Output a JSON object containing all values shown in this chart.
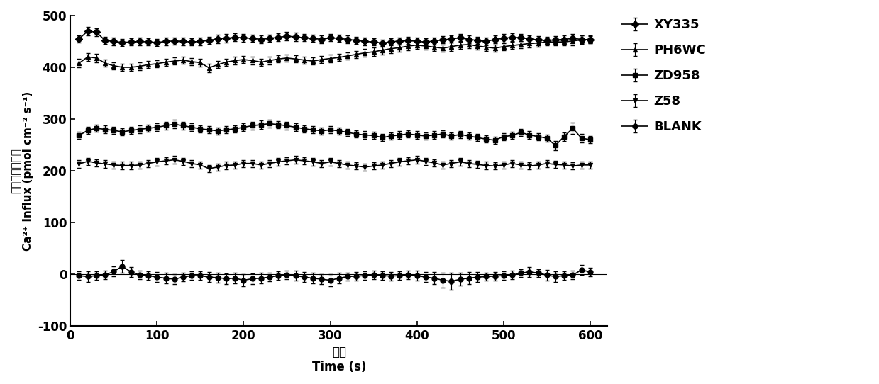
{
  "xlabel_cn": "时间",
  "xlabel_en": "Time (s)",
  "ylabel_cn": "钓离子内流速率",
  "ylabel_en": "Ca²⁺ Influx (pmol cm⁻² s⁻¹)",
  "xlim": [
    0,
    620
  ],
  "ylim": [
    -100,
    500
  ],
  "yticks": [
    -100,
    0,
    100,
    200,
    300,
    400,
    500
  ],
  "xticks": [
    0,
    100,
    200,
    300,
    400,
    500,
    600
  ],
  "background_color": "#ffffff",
  "series": [
    {
      "label": "XY335",
      "marker": "D",
      "color": "#000000",
      "x": [
        10,
        20,
        30,
        40,
        50,
        60,
        70,
        80,
        90,
        100,
        110,
        120,
        130,
        140,
        150,
        160,
        170,
        180,
        190,
        200,
        210,
        220,
        230,
        240,
        250,
        260,
        270,
        280,
        290,
        300,
        310,
        320,
        330,
        340,
        350,
        360,
        370,
        380,
        390,
        400,
        410,
        420,
        430,
        440,
        450,
        460,
        470,
        480,
        490,
        500,
        510,
        520,
        530,
        540,
        550,
        560,
        570,
        580,
        590,
        600
      ],
      "y": [
        455,
        470,
        468,
        452,
        450,
        448,
        449,
        450,
        449,
        448,
        450,
        451,
        450,
        449,
        450,
        452,
        455,
        456,
        458,
        457,
        456,
        454,
        456,
        458,
        460,
        459,
        457,
        456,
        454,
        457,
        456,
        454,
        452,
        450,
        449,
        447,
        449,
        451,
        452,
        450,
        449,
        451,
        453,
        455,
        457,
        454,
        452,
        450,
        454,
        456,
        458,
        457,
        455,
        453,
        452,
        453,
        454,
        456,
        454,
        453
      ],
      "yerr": [
        7,
        8,
        8,
        7,
        7,
        7,
        7,
        7,
        7,
        7,
        7,
        7,
        7,
        7,
        7,
        7,
        8,
        8,
        8,
        8,
        7,
        7,
        7,
        8,
        8,
        8,
        7,
        7,
        7,
        7,
        7,
        7,
        7,
        7,
        7,
        7,
        7,
        7,
        7,
        7,
        7,
        7,
        7,
        7,
        8,
        7,
        7,
        7,
        7,
        8,
        8,
        7,
        7,
        7,
        7,
        7,
        7,
        8,
        7,
        7
      ]
    },
    {
      "label": "PH6WC",
      "marker": "^",
      "color": "#000000",
      "x": [
        10,
        20,
        30,
        40,
        50,
        60,
        70,
        80,
        90,
        100,
        110,
        120,
        130,
        140,
        150,
        160,
        170,
        180,
        190,
        200,
        210,
        220,
        230,
        240,
        250,
        260,
        270,
        280,
        290,
        300,
        310,
        320,
        330,
        340,
        350,
        360,
        370,
        380,
        390,
        400,
        410,
        420,
        430,
        440,
        450,
        460,
        470,
        480,
        490,
        500,
        510,
        520,
        530,
        540,
        550,
        560,
        570,
        580,
        590,
        600
      ],
      "y": [
        408,
        420,
        418,
        408,
        403,
        400,
        400,
        402,
        405,
        407,
        410,
        412,
        414,
        411,
        409,
        399,
        405,
        410,
        413,
        415,
        413,
        410,
        413,
        416,
        418,
        416,
        414,
        412,
        415,
        417,
        419,
        422,
        425,
        428,
        430,
        433,
        436,
        438,
        441,
        443,
        441,
        439,
        437,
        440,
        443,
        444,
        441,
        439,
        437,
        440,
        442,
        444,
        446,
        447,
        449,
        449,
        449,
        451,
        453,
        454
      ],
      "yerr": [
        8,
        8,
        8,
        7,
        7,
        7,
        7,
        7,
        7,
        7,
        7,
        7,
        7,
        7,
        7,
        8,
        7,
        7,
        7,
        7,
        7,
        7,
        7,
        7,
        7,
        7,
        7,
        7,
        7,
        7,
        7,
        7,
        7,
        7,
        8,
        8,
        8,
        8,
        8,
        8,
        7,
        7,
        7,
        8,
        8,
        7,
        7,
        7,
        7,
        7,
        7,
        7,
        7,
        7,
        7,
        7,
        7,
        8,
        8,
        8
      ]
    },
    {
      "label": "ZD958",
      "marker": "s",
      "color": "#000000",
      "x": [
        10,
        20,
        30,
        40,
        50,
        60,
        70,
        80,
        90,
        100,
        110,
        120,
        130,
        140,
        150,
        160,
        170,
        180,
        190,
        200,
        210,
        220,
        230,
        240,
        250,
        260,
        270,
        280,
        290,
        300,
        310,
        320,
        330,
        340,
        350,
        360,
        370,
        380,
        390,
        400,
        410,
        420,
        430,
        440,
        450,
        460,
        470,
        480,
        490,
        500,
        510,
        520,
        530,
        540,
        550,
        560,
        570,
        580,
        590,
        600
      ],
      "y": [
        268,
        278,
        282,
        280,
        278,
        275,
        278,
        280,
        282,
        284,
        287,
        290,
        287,
        284,
        281,
        279,
        277,
        279,
        281,
        284,
        287,
        289,
        291,
        289,
        287,
        284,
        281,
        279,
        277,
        279,
        277,
        274,
        271,
        269,
        268,
        264,
        267,
        269,
        271,
        269,
        267,
        269,
        271,
        267,
        270,
        267,
        264,
        261,
        259,
        266,
        268,
        274,
        269,
        266,
        263,
        249,
        266,
        282,
        263,
        260
      ],
      "yerr": [
        7,
        7,
        7,
        7,
        7,
        7,
        7,
        7,
        7,
        7,
        7,
        8,
        7,
        7,
        7,
        7,
        7,
        7,
        7,
        7,
        7,
        8,
        8,
        7,
        7,
        7,
        7,
        7,
        7,
        7,
        7,
        7,
        7,
        7,
        7,
        7,
        7,
        7,
        7,
        7,
        7,
        7,
        7,
        7,
        7,
        7,
        7,
        7,
        7,
        7,
        7,
        7,
        7,
        7,
        7,
        9,
        8,
        11,
        8,
        7
      ]
    },
    {
      "label": "Z58",
      "marker": "v",
      "color": "#000000",
      "x": [
        10,
        20,
        30,
        40,
        50,
        60,
        70,
        80,
        90,
        100,
        110,
        120,
        130,
        140,
        150,
        160,
        170,
        180,
        190,
        200,
        210,
        220,
        230,
        240,
        250,
        260,
        270,
        280,
        290,
        300,
        310,
        320,
        330,
        340,
        350,
        360,
        370,
        380,
        390,
        400,
        410,
        420,
        430,
        440,
        450,
        460,
        470,
        480,
        490,
        500,
        510,
        520,
        530,
        540,
        550,
        560,
        570,
        580,
        590,
        600
      ],
      "y": [
        213,
        218,
        215,
        213,
        211,
        210,
        210,
        211,
        214,
        217,
        219,
        221,
        218,
        214,
        211,
        204,
        207,
        210,
        211,
        214,
        214,
        211,
        214,
        217,
        219,
        221,
        219,
        217,
        214,
        217,
        214,
        211,
        209,
        207,
        209,
        211,
        214,
        217,
        219,
        221,
        218,
        215,
        211,
        214,
        217,
        214,
        212,
        210,
        209,
        211,
        214,
        211,
        209,
        211,
        214,
        212,
        211,
        209,
        211,
        211
      ],
      "yerr": [
        7,
        7,
        7,
        7,
        7,
        7,
        7,
        7,
        7,
        7,
        7,
        7,
        7,
        7,
        7,
        7,
        7,
        7,
        7,
        7,
        7,
        7,
        7,
        7,
        7,
        7,
        7,
        7,
        7,
        7,
        7,
        7,
        7,
        7,
        7,
        7,
        7,
        7,
        7,
        7,
        7,
        7,
        7,
        7,
        7,
        7,
        7,
        7,
        7,
        7,
        7,
        7,
        7,
        7,
        7,
        7,
        7,
        7,
        7,
        7
      ]
    },
    {
      "label": "BLANK",
      "marker": "o",
      "color": "#000000",
      "x": [
        10,
        20,
        30,
        40,
        50,
        60,
        70,
        80,
        90,
        100,
        110,
        120,
        130,
        140,
        150,
        160,
        170,
        180,
        190,
        200,
        210,
        220,
        230,
        240,
        250,
        260,
        270,
        280,
        290,
        300,
        310,
        320,
        330,
        340,
        350,
        360,
        370,
        380,
        390,
        400,
        410,
        420,
        430,
        440,
        450,
        460,
        470,
        480,
        490,
        500,
        510,
        520,
        530,
        540,
        550,
        560,
        570,
        580,
        590,
        600
      ],
      "y": [
        -3,
        -5,
        -3,
        -2,
        5,
        15,
        4,
        -2,
        -3,
        -6,
        -8,
        -10,
        -6,
        -3,
        -3,
        -6,
        -7,
        -9,
        -8,
        -12,
        -9,
        -8,
        -6,
        -3,
        -2,
        -3,
        -6,
        -8,
        -10,
        -12,
        -8,
        -5,
        -4,
        -3,
        -2,
        -3,
        -4,
        -3,
        -2,
        -3,
        -6,
        -8,
        -12,
        -14,
        -10,
        -8,
        -6,
        -5,
        -4,
        -3,
        -2,
        2,
        4,
        2,
        -2,
        -5,
        -3,
        -2,
        8,
        4
      ],
      "yerr": [
        8,
        10,
        8,
        8,
        10,
        12,
        10,
        8,
        8,
        10,
        10,
        10,
        8,
        8,
        8,
        10,
        10,
        10,
        10,
        12,
        10,
        10,
        8,
        8,
        8,
        10,
        10,
        10,
        10,
        12,
        10,
        8,
        8,
        8,
        8,
        8,
        8,
        8,
        8,
        10,
        10,
        12,
        14,
        16,
        12,
        12,
        10,
        8,
        8,
        8,
        8,
        8,
        10,
        8,
        10,
        10,
        8,
        8,
        10,
        8
      ]
    }
  ],
  "marker_size": 5,
  "line_width": 1.2,
  "capsize": 2,
  "elinewidth": 0.8,
  "legend_fontsize": 13,
  "tick_fontsize": 12,
  "label_fontsize": 12
}
